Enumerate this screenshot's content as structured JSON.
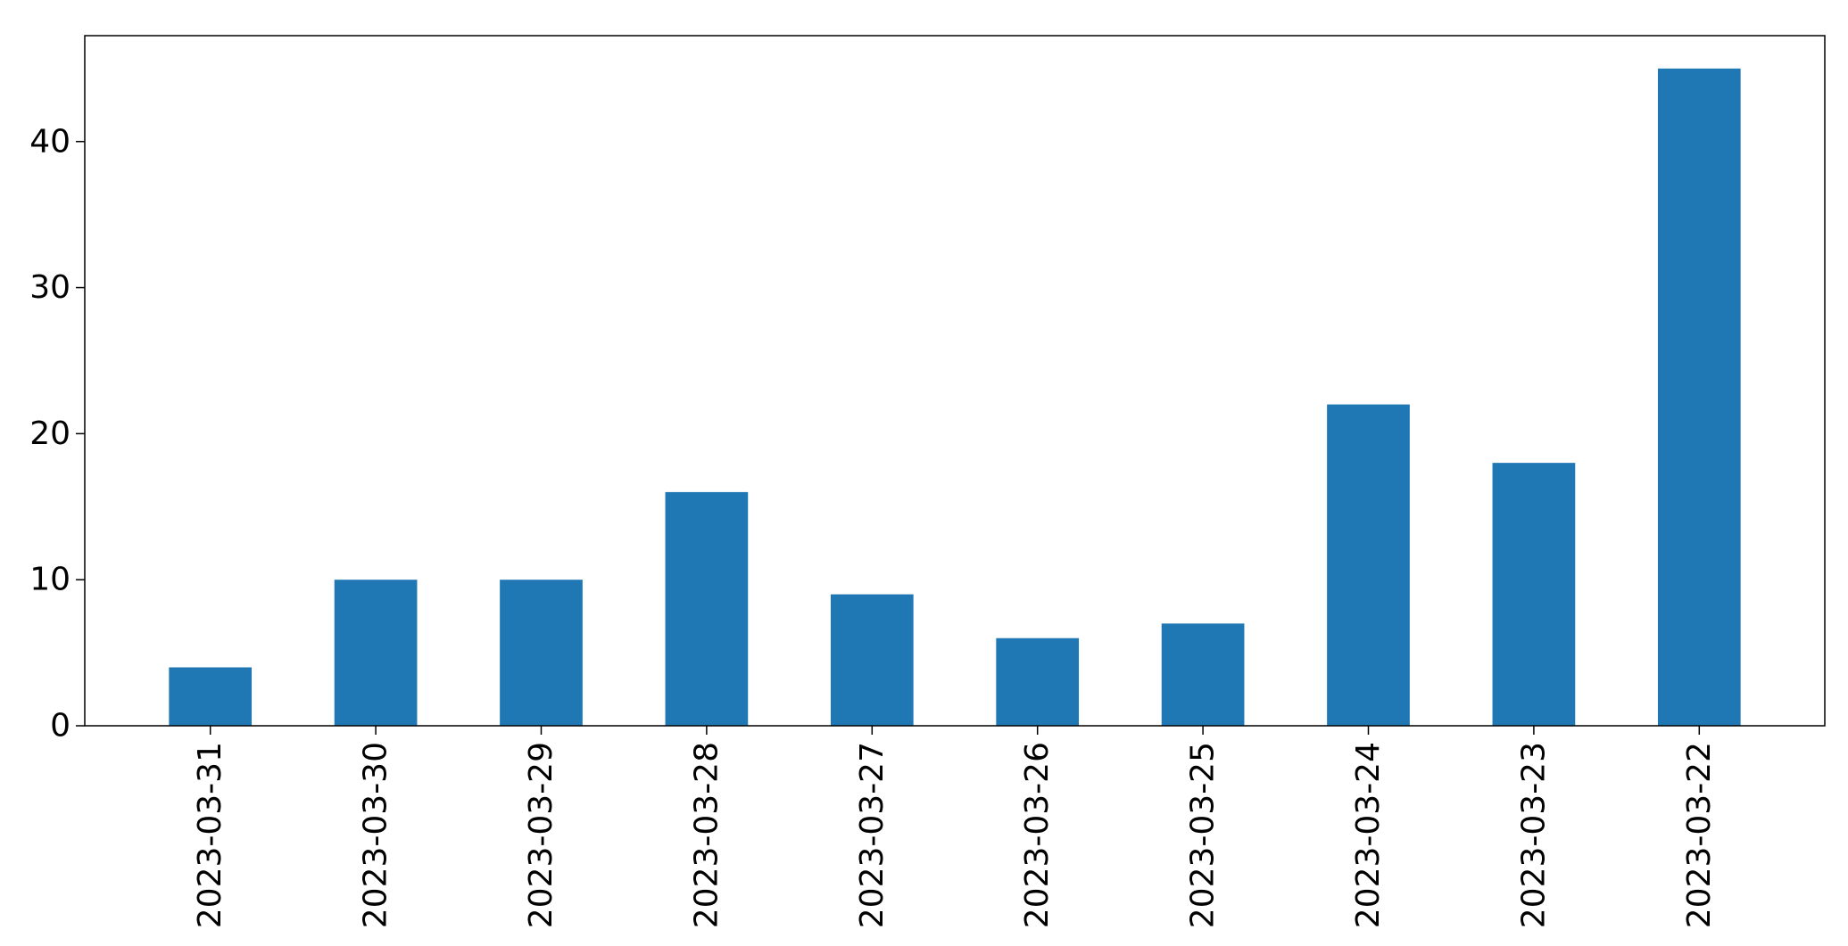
{
  "chart_data": {
    "type": "bar",
    "categories": [
      "2023-03-31",
      "2023-03-30",
      "2023-03-29",
      "2023-03-28",
      "2023-03-27",
      "2023-03-26",
      "2023-03-25",
      "2023-03-24",
      "2023-03-23",
      "2023-03-22"
    ],
    "values": [
      4,
      10,
      10,
      16,
      9,
      6,
      7,
      22,
      18,
      45
    ],
    "title": "",
    "xlabel": "",
    "ylabel": "",
    "ylim": [
      0,
      47.25
    ],
    "yticks": [
      0,
      10,
      20,
      30,
      40
    ],
    "bar_color": "#1f77b4",
    "grid": false,
    "legend": "none",
    "xtick_rotation": "vertical"
  }
}
